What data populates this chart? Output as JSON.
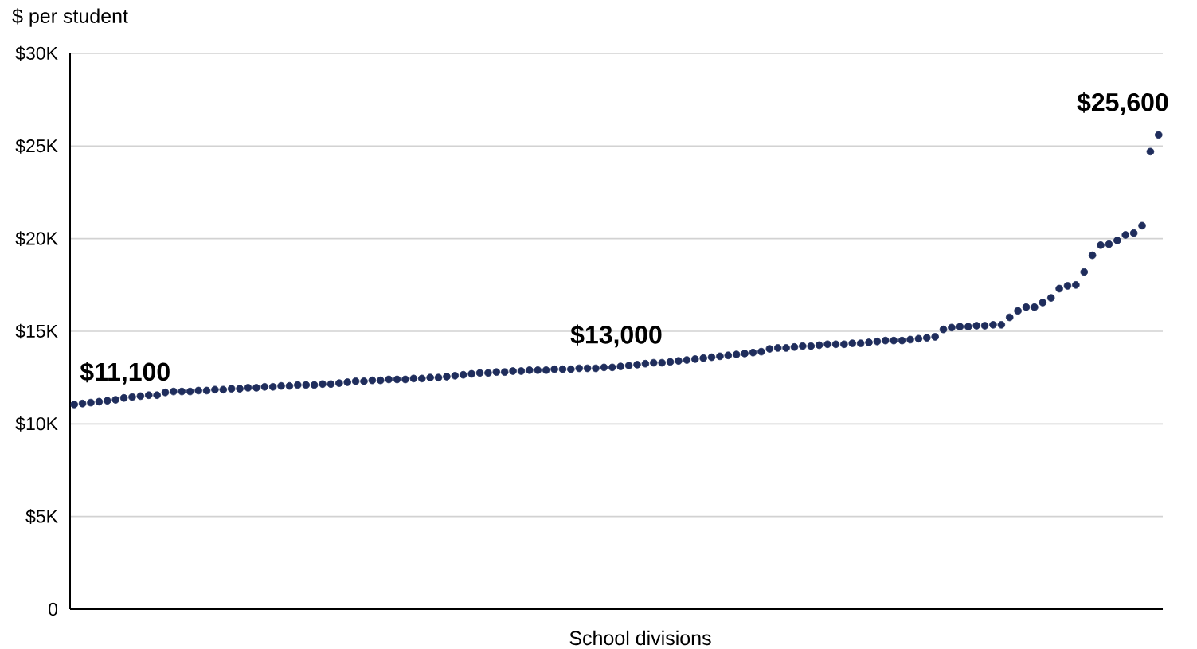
{
  "chart_data": {
    "type": "scatter",
    "ylabel": "$ per student",
    "xlabel": "School divisions",
    "categories": [
      null,
      null,
      null,
      null,
      null,
      null,
      null,
      null,
      null,
      null,
      null,
      null,
      null,
      null,
      null,
      null,
      null,
      null,
      null,
      null,
      null,
      null,
      null,
      null,
      null,
      null,
      null,
      null,
      null,
      null,
      null,
      null,
      null,
      null,
      null,
      null,
      null,
      null,
      null,
      null,
      null,
      null,
      null,
      null,
      null,
      null,
      null,
      null,
      null,
      null,
      null,
      null,
      null,
      null,
      null,
      null,
      null,
      null,
      null,
      null,
      null,
      null,
      null,
      null,
      null,
      null,
      null,
      null,
      null,
      null,
      null,
      null,
      null,
      null,
      null,
      null,
      null,
      null,
      null,
      null,
      null,
      null,
      null,
      null,
      null,
      null,
      null,
      null,
      null,
      null,
      null,
      null,
      null,
      null,
      null,
      null,
      null,
      null,
      null,
      null,
      null,
      null,
      null,
      null,
      null,
      null,
      null,
      null,
      null,
      null,
      null,
      null,
      null,
      null,
      null,
      null,
      null,
      null,
      null,
      null,
      null,
      null,
      null,
      null,
      null,
      null,
      null,
      null,
      null,
      null,
      null,
      null
    ],
    "values": [
      11.05,
      11.1,
      11.15,
      11.2,
      11.25,
      11.3,
      11.4,
      11.45,
      11.5,
      11.55,
      11.55,
      11.7,
      11.75,
      11.75,
      11.75,
      11.8,
      11.8,
      11.85,
      11.85,
      11.9,
      11.9,
      11.95,
      11.95,
      12.0,
      12.0,
      12.05,
      12.05,
      12.1,
      12.1,
      12.1,
      12.15,
      12.15,
      12.2,
      12.25,
      12.3,
      12.3,
      12.35,
      12.35,
      12.4,
      12.4,
      12.4,
      12.45,
      12.45,
      12.5,
      12.5,
      12.55,
      12.6,
      12.65,
      12.7,
      12.75,
      12.75,
      12.8,
      12.8,
      12.85,
      12.85,
      12.9,
      12.9,
      12.9,
      12.95,
      12.95,
      12.95,
      13.0,
      13.0,
      13.0,
      13.05,
      13.05,
      13.1,
      13.15,
      13.2,
      13.25,
      13.3,
      13.3,
      13.35,
      13.4,
      13.45,
      13.5,
      13.55,
      13.6,
      13.65,
      13.7,
      13.75,
      13.8,
      13.85,
      13.9,
      14.05,
      14.1,
      14.1,
      14.15,
      14.2,
      14.2,
      14.25,
      14.3,
      14.3,
      14.3,
      14.35,
      14.35,
      14.4,
      14.45,
      14.5,
      14.5,
      14.5,
      14.55,
      14.6,
      14.65,
      14.7,
      15.1,
      15.2,
      15.25,
      15.25,
      15.3,
      15.3,
      15.35,
      15.35,
      15.75,
      16.1,
      16.3,
      16.3,
      16.55,
      16.8,
      17.3,
      17.45,
      17.5,
      18.2,
      19.1,
      19.65,
      19.7,
      19.9,
      20.2,
      20.3,
      20.7,
      24.7,
      25.6
    ],
    "color": "#1f2d5c",
    "marker": "circle",
    "ylim": [
      0,
      30
    ],
    "yticks": [
      0,
      {
        "value": 5,
        "label": "$5K"
      },
      {
        "value": 10,
        "label": "$10K"
      },
      {
        "value": 15,
        "label": "$15K"
      },
      {
        "value": 20,
        "label": "$20K"
      },
      {
        "value": 25,
        "label": "$25K"
      },
      {
        "value": 30,
        "label": "$30K"
      }
    ],
    "grid": "y",
    "tick_labels": "y",
    "annotations": [
      "$11,100",
      "$13,000",
      "$25,600"
    ]
  }
}
